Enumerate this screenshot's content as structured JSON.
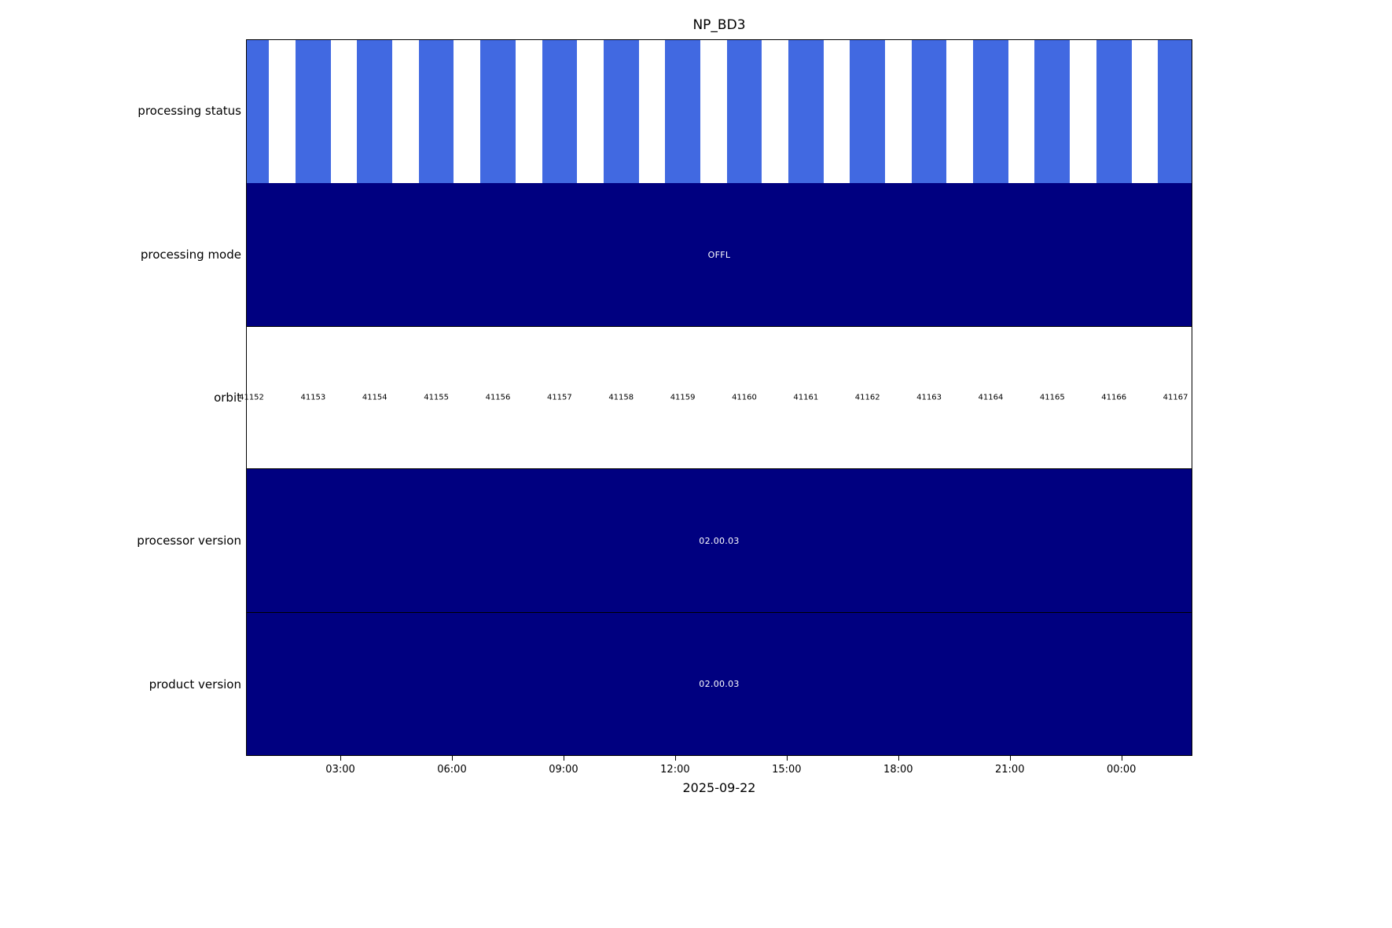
{
  "title": "NP_BD3",
  "chart_data": {
    "type": "table",
    "title": "NP_BD3",
    "xlabel": "2025-09-22",
    "x_axis": {
      "tick_labels": [
        "03:00",
        "06:00",
        "09:00",
        "12:00",
        "15:00",
        "18:00",
        "21:00",
        "00:00"
      ],
      "date": "2025-09-22"
    },
    "rows": [
      {
        "label": "processing status",
        "type": "bars",
        "note": "one filled bar per orbit, all present"
      },
      {
        "label": "processing mode",
        "value": "OFFL"
      },
      {
        "label": "orbit",
        "values": [
          "41152",
          "41153",
          "41154",
          "41155",
          "41156",
          "41157",
          "41158",
          "41159",
          "41160",
          "41161",
          "41162",
          "41163",
          "41164",
          "41165",
          "41166",
          "41167"
        ]
      },
      {
        "label": "processor version",
        "value": "02.00.03"
      },
      {
        "label": "product version",
        "value": "02.00.03"
      }
    ],
    "layout": {
      "orbit_first_center_pct": 0.5,
      "orbit_pitch_pct": 6.52,
      "bar_width_pct": 3.72,
      "tick_first_pct": 9.97,
      "tick_pitch_pct": 11.79,
      "legend": "none",
      "grid": false
    },
    "colors": {
      "bar_blue": "#4169E1",
      "navy": "#000080",
      "background": "#ffffff",
      "value_text": "#ffffff",
      "text": "#000000"
    }
  }
}
